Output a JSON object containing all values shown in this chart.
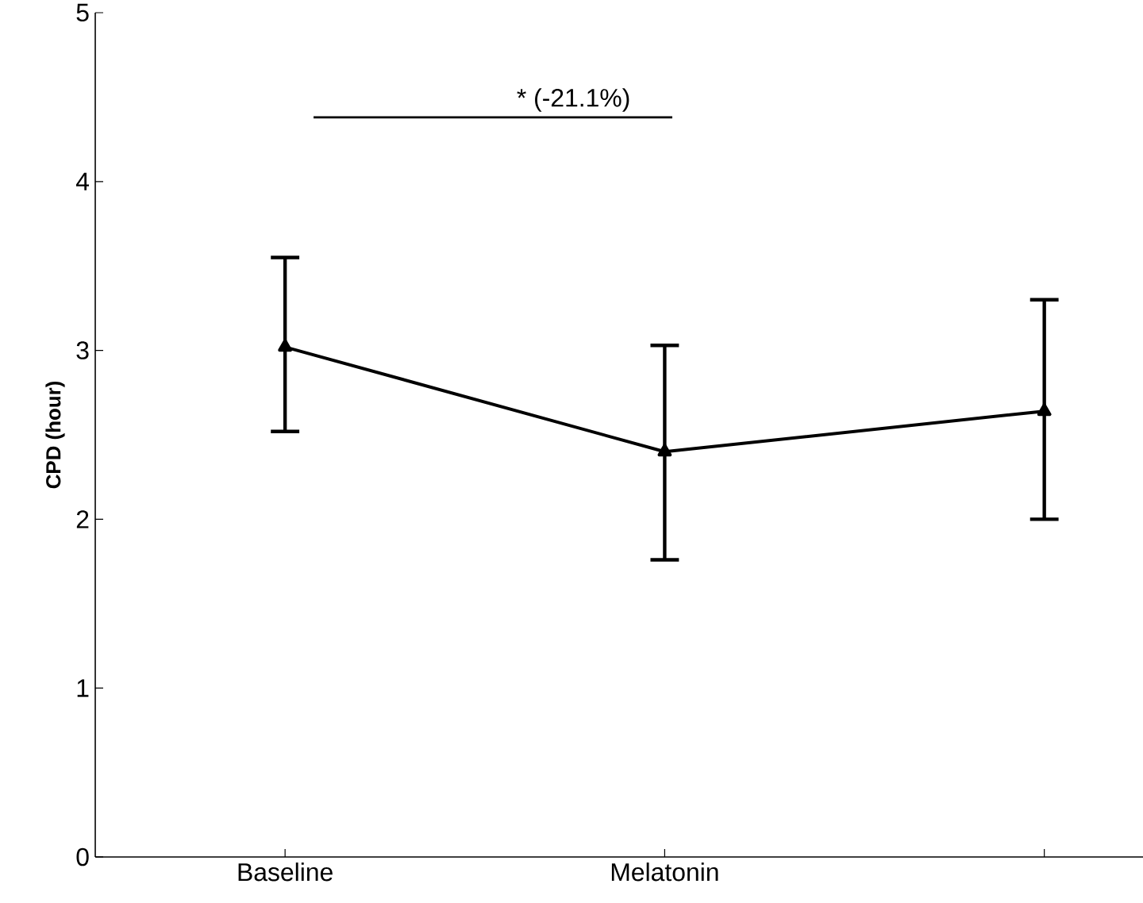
{
  "chart_data": {
    "type": "line",
    "ylabel": "CPD (hour)",
    "categories": [
      "Baseline",
      "Melatonin",
      null
    ],
    "series": [
      {
        "color": "#000000",
        "values": [
          3.02,
          2.4,
          2.64
        ],
        "errors": [
          [
            2.52,
            3.55
          ],
          [
            1.76,
            3.03
          ],
          [
            2.0,
            3.3
          ]
        ]
      }
    ],
    "ylim": [
      0,
      5
    ],
    "yticks": [
      0,
      1,
      2,
      3,
      4,
      5
    ],
    "marker": "triangle",
    "line_style": "solid",
    "grid": false,
    "annotations": [
      "* (-21.1%)"
    ]
  }
}
